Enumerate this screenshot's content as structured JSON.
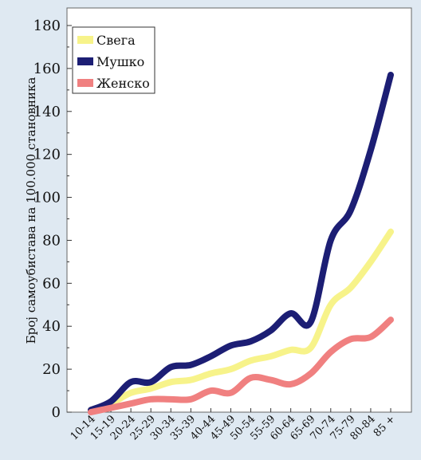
{
  "chart_data": {
    "type": "line",
    "title": "",
    "xlabel": "",
    "ylabel": "Број самоубистава на 100.000 становника",
    "ylim": [
      0,
      180
    ],
    "yticks": [
      0,
      20,
      40,
      60,
      80,
      100,
      120,
      140,
      160,
      180
    ],
    "grid": false,
    "legend_position": "top-left",
    "categories": [
      "10-14",
      "15-19",
      "20-24",
      "25-29",
      "30-34",
      "35-39",
      "40-44",
      "45-49",
      "50-54",
      "55-59",
      "60-64",
      "65-69",
      "70-74",
      "75-79",
      "80-84",
      "85 +"
    ],
    "series": [
      {
        "name": "Свега",
        "color": "#f7f38a",
        "values": [
          1,
          4,
          9,
          11,
          14,
          15,
          18,
          20,
          24,
          26,
          29,
          30,
          50,
          58,
          70,
          84
        ]
      },
      {
        "name": "Мушко",
        "color": "#1c1e74",
        "values": [
          1,
          5,
          14,
          14,
          21,
          22,
          26,
          31,
          33,
          38,
          46,
          42,
          80,
          94,
          122,
          157
        ]
      },
      {
        "name": "Женско",
        "color": "#f08080",
        "values": [
          0,
          2,
          4,
          6,
          6,
          6,
          10,
          9,
          16,
          15,
          13,
          18,
          28,
          34,
          35,
          43
        ]
      }
    ]
  }
}
